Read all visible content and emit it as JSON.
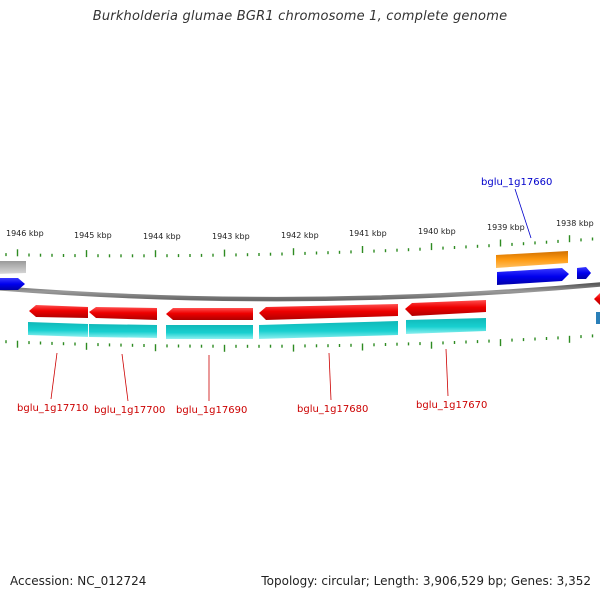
{
  "title": "Burkholderia glumae BGR1 chromosome 1, complete genome",
  "footer": {
    "accession": "Accession: NC_012724",
    "summary": "Topology: circular; Length: 3,906,529 bp; Genes: 3,352"
  },
  "colors": {
    "backbone": "#888888",
    "tick": "#2e8b22",
    "forward_gene": "#0a0af0",
    "forward_cds": "#ff8c00",
    "reverse_gene": "#ee0000",
    "reverse_cds": "#10c8c8",
    "other_feature": "#b8b8b8",
    "label_forward": "#0000cc",
    "label_reverse": "#cc0000"
  },
  "scale": {
    "labels": [
      "1946 kbp",
      "1945 kbp",
      "1944 kbp",
      "1943 kbp",
      "1942 kbp",
      "1941 kbp",
      "1940 kbp",
      "1939 kbp",
      "1938 kbp"
    ]
  },
  "genes": {
    "reverse": [
      "bglu_1g17710",
      "bglu_1g17700",
      "bglu_1g17690",
      "bglu_1g17680",
      "bglu_1g17670"
    ],
    "forward": [
      "bglu_1g17660"
    ]
  }
}
